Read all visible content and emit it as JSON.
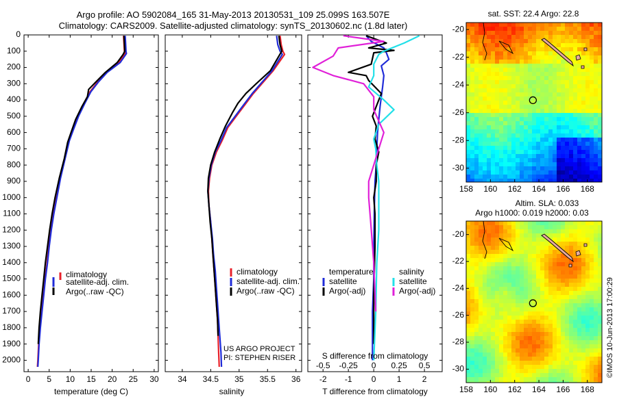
{
  "header": {
    "title_line1": "Argo profile: AO 5902084_165 31-May-2013 20130531_109 25.099S 163.507E",
    "title_line2": "Climatology: CARS2009. Satellite-adjusted climatology: synTS_20130602.nc (1.8d later)"
  },
  "colors": {
    "climatology": "#e8202a",
    "satellite": "#1f2bd8",
    "argo": "#000000",
    "sat_salinity": "#22e0e8",
    "argo_salinity": "#e020d8"
  },
  "chart_data": [
    {
      "id": "temperature",
      "type": "line",
      "xlabel": "temperature (deg C)",
      "ylabel": "",
      "xlim": [
        -1,
        31
      ],
      "ylim": [
        2070,
        0
      ],
      "xticks": [
        0,
        5,
        10,
        15,
        20,
        25,
        30
      ],
      "yticks": [
        0,
        100,
        200,
        300,
        400,
        500,
        600,
        700,
        800,
        900,
        1000,
        1100,
        1200,
        1300,
        1400,
        1500,
        1600,
        1700,
        1800,
        1900,
        2000
      ],
      "legend": {
        "placement": "lower-right",
        "entries": [
          "climatology",
          "satellite-adj. clim.",
          "Argo(..raw -QC)"
        ]
      },
      "series": [
        {
          "name": "climatology",
          "color": "#e8202a",
          "x": [
            22.7,
            22.8,
            22.9,
            23.1,
            21.5,
            18.5,
            16.5,
            14.7,
            13.3,
            11.8,
            10.6,
            9.7,
            8.7,
            7.6,
            6.8,
            6.0,
            5.4,
            4.9,
            4.5,
            4.0,
            3.6,
            3.2,
            2.8,
            2.5,
            2.3,
            2.2
          ],
          "y": [
            5,
            50,
            100,
            115,
            170,
            230,
            290,
            350,
            420,
            500,
            580,
            650,
            760,
            880,
            990,
            1100,
            1200,
            1300,
            1400,
            1500,
            1600,
            1700,
            1800,
            1900,
            2000,
            2040
          ]
        },
        {
          "name": "satellite-adj. clim.",
          "color": "#1f2bd8",
          "x": [
            23.1,
            23.2,
            23.3,
            23.4,
            21.9,
            18.8,
            16.7,
            14.9,
            13.5,
            12.0,
            10.8,
            9.8,
            8.8,
            7.7,
            6.9,
            6.1,
            5.5,
            5.0,
            4.6,
            4.1,
            3.7,
            3.3,
            2.9,
            2.6,
            2.4,
            2.3
          ],
          "y": [
            5,
            50,
            100,
            115,
            170,
            230,
            290,
            350,
            420,
            500,
            580,
            650,
            760,
            880,
            990,
            1100,
            1200,
            1300,
            1400,
            1500,
            1600,
            1700,
            1800,
            1900,
            2000,
            2040
          ]
        },
        {
          "name": "Argo(..raw -QC)",
          "color": "#000000",
          "x": [
            22.8,
            22.9,
            23.0,
            22.6,
            21.2,
            18.4,
            16.1,
            14.4,
            14.1,
            12.8,
            11.3,
            10.2,
            9.4,
            8.6,
            7.4,
            6.4,
            5.7,
            5.1,
            4.6,
            4.1,
            3.7,
            3.3,
            2.9,
            2.6,
            2.4
          ],
          "y": [
            5,
            50,
            100,
            120,
            170,
            230,
            290,
            335,
            380,
            440,
            520,
            600,
            660,
            760,
            880,
            1000,
            1100,
            1200,
            1300,
            1400,
            1500,
            1600,
            1700,
            1800,
            1900
          ]
        }
      ]
    },
    {
      "id": "salinity",
      "type": "line",
      "xlabel": "salinity",
      "ylabel": "",
      "xlim": [
        33.7,
        36.1
      ],
      "ylim": [
        2070,
        0
      ],
      "xticks": [
        34,
        34.5,
        35,
        35.5,
        36
      ],
      "xtick_labels": [
        "34",
        "34.5",
        "35",
        "35.5",
        "36"
      ],
      "legend": {
        "placement": "lower-right",
        "entries": [
          "climatology",
          "satellite-adj. clim.",
          "Argo(..raw -QC)"
        ]
      },
      "annotation": {
        "line1": "US ARGO PROJECT",
        "line2": "PI: STEPHEN RISER"
      },
      "series": [
        {
          "name": "climatology",
          "color": "#e8202a",
          "x": [
            35.72,
            35.74,
            35.77,
            35.8,
            35.6,
            35.4,
            35.25,
            35.1,
            34.95,
            34.8,
            34.7,
            34.6,
            34.52,
            34.48,
            34.46,
            34.47,
            34.5,
            34.52,
            34.54,
            34.56,
            34.58,
            34.6,
            34.62,
            34.63,
            34.64,
            34.65
          ],
          "y": [
            5,
            60,
            100,
            120,
            220,
            300,
            360,
            430,
            500,
            570,
            650,
            720,
            800,
            880,
            960,
            1050,
            1150,
            1250,
            1350,
            1450,
            1550,
            1650,
            1750,
            1850,
            1950,
            2040
          ]
        },
        {
          "name": "satellite-adj. clim.",
          "color": "#1f2bd8",
          "x": [
            35.66,
            35.68,
            35.72,
            35.76,
            35.58,
            35.38,
            35.23,
            35.08,
            34.93,
            34.78,
            34.68,
            34.58,
            34.51,
            34.47,
            34.45,
            34.47,
            34.5,
            34.53,
            34.55,
            34.58,
            34.6,
            34.62,
            34.64,
            34.66,
            34.68,
            34.69
          ],
          "y": [
            5,
            60,
            100,
            120,
            220,
            300,
            360,
            430,
            500,
            570,
            650,
            720,
            800,
            880,
            960,
            1050,
            1150,
            1250,
            1350,
            1450,
            1550,
            1650,
            1750,
            1850,
            1950,
            2040
          ]
        },
        {
          "name": "Argo(..raw -QC)",
          "color": "#000000",
          "x": [
            35.7,
            35.72,
            35.75,
            35.7,
            35.55,
            35.3,
            35.12,
            34.98,
            34.88,
            34.76,
            34.66,
            34.57,
            34.5,
            34.46,
            34.45,
            34.47,
            34.49,
            34.52,
            34.54,
            34.56,
            34.58,
            34.6,
            34.62,
            34.63
          ],
          "y": [
            5,
            60,
            100,
            130,
            220,
            300,
            360,
            420,
            480,
            560,
            640,
            720,
            800,
            880,
            960,
            1050,
            1150,
            1250,
            1350,
            1450,
            1550,
            1650,
            1750,
            1850
          ]
        }
      ]
    },
    {
      "id": "difference",
      "type": "line",
      "xlabel": "T difference from climatology",
      "xlabel_top": "S difference from climatology",
      "ylabel": "",
      "xlim": [
        -2.6,
        2.7
      ],
      "ylim": [
        2070,
        0
      ],
      "xticks": [
        -2,
        -1,
        0,
        1,
        2
      ],
      "secondary_xticks": [
        -0.5,
        -0.25,
        0,
        0.25,
        0.5
      ],
      "secondary_xtick_labels": [
        "-0.5",
        "-0.25",
        "0",
        "0.25",
        "0.5"
      ],
      "legend": {
        "placement": "lower-center",
        "entries": [
          "temperature",
          "satellite",
          "Argo(-adj)",
          "salinity",
          "satellite",
          "Argo(-adj)"
        ]
      },
      "series": [
        {
          "name": "temperature satellite",
          "color": "#1f2bd8",
          "x": [
            -0.3,
            -0.1,
            0.4,
            0.5,
            0.6,
            0.3,
            0.4,
            0.35,
            0.3,
            0.25,
            0.2,
            0.15,
            0.12,
            0.1,
            0.05,
            0.02,
            0.0,
            0.0,
            -0.05,
            -0.05
          ],
          "y": [
            5,
            40,
            80,
            110,
            150,
            190,
            250,
            320,
            380,
            440,
            520,
            600,
            700,
            800,
            900,
            1100,
            1300,
            1500,
            1700,
            2000
          ]
        },
        {
          "name": "temperature Argo(-adj)",
          "color": "#000000",
          "x": [
            -0.3,
            0.5,
            -0.2,
            0.8,
            0.0,
            -0.1,
            -1.0,
            -0.3,
            -0.2,
            0.3,
            0.1,
            -0.05,
            0.1,
            0.05,
            0.2,
            0.1,
            0.1,
            0.0,
            0.05,
            0.05,
            0.0,
            0.0
          ],
          "y": [
            5,
            50,
            80,
            95,
            110,
            180,
            230,
            250,
            280,
            360,
            440,
            500,
            560,
            640,
            720,
            800,
            900,
            1000,
            1100,
            1300,
            1600,
            1900
          ]
        },
        {
          "name": "salinity satellite",
          "color": "#22e0e8",
          "x": [
            0.45,
            0.3,
            0.1,
            0.05,
            0.0,
            0.0,
            -0.05,
            0.1,
            0.2,
            0.05,
            0.0,
            0.02,
            0.03,
            0.05,
            0.05,
            0.05,
            0.03,
            0.02,
            0.0
          ],
          "y": [
            5,
            50,
            100,
            120,
            180,
            250,
            320,
            400,
            460,
            550,
            640,
            700,
            800,
            900,
            1000,
            1200,
            1400,
            1700,
            2000
          ]
        },
        {
          "name": "salinity Argo(-adj)",
          "color": "#e020d8",
          "x": [
            -0.3,
            0.1,
            -0.35,
            -0.4,
            -0.6,
            -0.4,
            -0.1,
            0.0,
            0.0,
            0.1,
            0.05,
            0.0,
            -0.05,
            -0.05,
            -0.03,
            0.0,
            0.02
          ],
          "y": [
            5,
            40,
            80,
            130,
            200,
            250,
            300,
            380,
            460,
            600,
            700,
            800,
            900,
            1000,
            1150,
            1400,
            1700
          ]
        }
      ]
    },
    {
      "id": "sst_map",
      "type": "heatmap",
      "title": "sat. SST: 22.4 Argo: 22.8",
      "xlim": [
        158,
        169.2
      ],
      "ylim": [
        -31,
        -19.5
      ],
      "xticks": [
        158,
        160,
        162,
        164,
        166,
        168
      ],
      "yticks": [
        -20,
        -22,
        -24,
        -26,
        -28,
        -30
      ],
      "marker": {
        "lon": 163.507,
        "lat": -25.099
      }
    },
    {
      "id": "sla_map",
      "type": "heatmap",
      "title_line1": "Altim. SLA: 0.033",
      "title_line2": "Argo h1000: 0.019 h2000: 0.03",
      "xlim": [
        158,
        169.2
      ],
      "ylim": [
        -31,
        -19
      ],
      "xticks": [
        158,
        160,
        162,
        164,
        166,
        168
      ],
      "yticks": [
        -20,
        -22,
        -24,
        -26,
        -28,
        -30
      ],
      "marker": {
        "lon": 163.507,
        "lat": -25.099
      }
    }
  ],
  "footer": {
    "stamp": "©IMOS 10-Jun-2013 17:00:29"
  }
}
